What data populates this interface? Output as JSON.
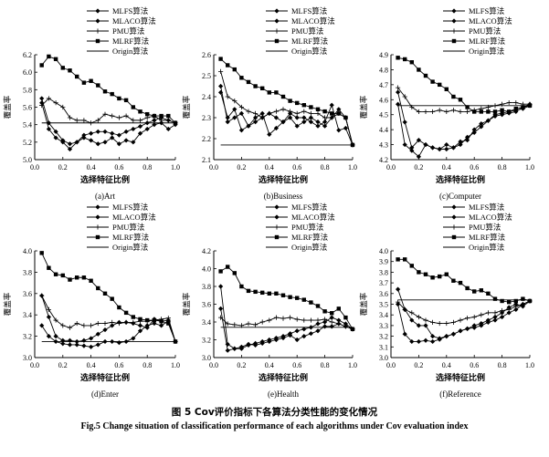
{
  "caption_cn": "图 5    Cov评价指标下各算法分类性能的变化情况",
  "caption_en": "Fig.5    Change situation of classification performance of each algorithms under Cov evaluation index",
  "legend": [
    "MLFS算法",
    "MLACO算法",
    "PMU算法",
    "MLRF算法",
    "Origin算法"
  ],
  "chart_data": [
    {
      "type": "line",
      "title": "(a)Art",
      "xlabel": "选择特征比例",
      "ylabel": "覆盖率",
      "xlim": [
        0,
        1.0
      ],
      "ylim": [
        5.0,
        6.2
      ],
      "xticks": [
        "0.0",
        "0.2",
        "0.4",
        "0.6",
        "0.8",
        "1.0"
      ],
      "yticks": [
        "5.0",
        "5.2",
        "5.4",
        "5.6",
        "5.8",
        "6.0",
        "6.2"
      ],
      "x": [
        0.05,
        0.1,
        0.15,
        0.2,
        0.25,
        0.3,
        0.35,
        0.4,
        0.45,
        0.5,
        0.55,
        0.6,
        0.65,
        0.7,
        0.75,
        0.8,
        0.85,
        0.9,
        0.95,
        1.0
      ],
      "series": [
        {
          "name": "MLFS算法",
          "marker": "diamond",
          "values": [
            5.65,
            5.35,
            5.25,
            5.2,
            5.12,
            5.2,
            5.25,
            5.22,
            5.18,
            5.2,
            5.25,
            5.18,
            5.22,
            5.2,
            5.3,
            5.35,
            5.4,
            5.42,
            5.35,
            5.4
          ]
        },
        {
          "name": "MLACO算法",
          "marker": "diamond",
          "values": [
            5.7,
            5.42,
            5.32,
            5.22,
            5.18,
            5.2,
            5.28,
            5.3,
            5.32,
            5.32,
            5.3,
            5.28,
            5.32,
            5.35,
            5.38,
            5.42,
            5.45,
            5.48,
            5.45,
            5.42
          ]
        },
        {
          "name": "PMU算法",
          "marker": "plus",
          "values": [
            5.62,
            5.7,
            5.65,
            5.6,
            5.48,
            5.45,
            5.45,
            5.42,
            5.45,
            5.52,
            5.5,
            5.48,
            5.5,
            5.45,
            5.45,
            5.48,
            5.5,
            5.45,
            5.45,
            5.42
          ]
        },
        {
          "name": "MLRF算法",
          "marker": "square",
          "values": [
            6.08,
            6.18,
            6.15,
            6.05,
            6.02,
            5.95,
            5.88,
            5.9,
            5.85,
            5.78,
            5.75,
            5.7,
            5.68,
            5.6,
            5.55,
            5.52,
            5.5,
            5.5,
            5.5,
            5.42
          ]
        },
        {
          "name": "Origin算法",
          "marker": "none",
          "values": [
            5.42,
            5.42,
            5.42,
            5.42,
            5.42,
            5.42,
            5.42,
            5.42,
            5.42,
            5.42,
            5.42,
            5.42,
            5.42,
            5.42,
            5.42,
            5.42,
            5.42,
            5.42,
            5.42,
            5.42
          ]
        }
      ]
    },
    {
      "type": "line",
      "title": "(b)Business",
      "xlabel": "选择特征比例",
      "ylabel": "覆盖率",
      "xlim": [
        0,
        1.0
      ],
      "ylim": [
        2.1,
        2.6
      ],
      "xticks": [
        "0.0",
        "0.2",
        "0.4",
        "0.6",
        "0.8",
        "1.0"
      ],
      "yticks": [
        "2.1",
        "2.2",
        "2.3",
        "2.4",
        "2.5",
        "2.6"
      ],
      "x": [
        0.05,
        0.1,
        0.15,
        0.2,
        0.25,
        0.3,
        0.35,
        0.4,
        0.45,
        0.5,
        0.55,
        0.6,
        0.65,
        0.7,
        0.75,
        0.8,
        0.85,
        0.9,
        0.95,
        1.0
      ],
      "series": [
        {
          "name": "MLFS算法",
          "marker": "diamond",
          "values": [
            2.42,
            2.3,
            2.34,
            2.24,
            2.26,
            2.3,
            2.32,
            2.22,
            2.25,
            2.28,
            2.3,
            2.26,
            2.28,
            2.3,
            2.28,
            2.26,
            2.3,
            2.34,
            2.3,
            2.17
          ]
        },
        {
          "name": "MLACO算法",
          "marker": "diamond",
          "values": [
            2.45,
            2.28,
            2.3,
            2.32,
            2.26,
            2.28,
            2.3,
            2.32,
            2.3,
            2.28,
            2.32,
            2.3,
            2.3,
            2.28,
            2.26,
            2.28,
            2.36,
            2.24,
            2.25,
            2.17
          ]
        },
        {
          "name": "PMU算法",
          "marker": "plus",
          "values": [
            2.52,
            2.4,
            2.38,
            2.35,
            2.33,
            2.32,
            2.3,
            2.32,
            2.33,
            2.34,
            2.33,
            2.32,
            2.33,
            2.32,
            2.32,
            2.3,
            2.3,
            2.32,
            2.3,
            2.17
          ]
        },
        {
          "name": "MLRF算法",
          "marker": "square",
          "values": [
            2.58,
            2.55,
            2.53,
            2.49,
            2.47,
            2.45,
            2.44,
            2.42,
            2.42,
            2.4,
            2.38,
            2.37,
            2.36,
            2.35,
            2.34,
            2.33,
            2.32,
            2.32,
            2.3,
            2.17
          ]
        },
        {
          "name": "Origin算法",
          "marker": "none",
          "values": [
            2.17,
            2.17,
            2.17,
            2.17,
            2.17,
            2.17,
            2.17,
            2.17,
            2.17,
            2.17,
            2.17,
            2.17,
            2.17,
            2.17,
            2.17,
            2.17,
            2.17,
            2.17,
            2.17,
            2.17
          ]
        }
      ]
    },
    {
      "type": "line",
      "title": "(c)Computer",
      "xlabel": "选择特征比例",
      "ylabel": "覆盖率",
      "xlim": [
        0,
        1.0
      ],
      "ylim": [
        4.2,
        4.9
      ],
      "xticks": [
        "0.0",
        "0.2",
        "0.4",
        "0.6",
        "0.8",
        "1.0"
      ],
      "yticks": [
        "4.2",
        "4.3",
        "4.4",
        "4.5",
        "4.6",
        "4.7",
        "4.8",
        "4.9"
      ],
      "x": [
        0.05,
        0.1,
        0.15,
        0.2,
        0.25,
        0.3,
        0.35,
        0.4,
        0.45,
        0.5,
        0.55,
        0.6,
        0.65,
        0.7,
        0.75,
        0.8,
        0.85,
        0.9,
        0.95,
        1.0
      ],
      "series": [
        {
          "name": "MLFS算法",
          "marker": "diamond",
          "values": [
            4.57,
            4.3,
            4.26,
            4.22,
            4.3,
            4.28,
            4.27,
            4.27,
            4.28,
            4.3,
            4.35,
            4.38,
            4.42,
            4.46,
            4.5,
            4.51,
            4.52,
            4.53,
            4.54,
            4.56
          ]
        },
        {
          "name": "MLACO算法",
          "marker": "diamond",
          "values": [
            4.65,
            4.45,
            4.28,
            4.33,
            4.3,
            4.28,
            4.27,
            4.3,
            4.28,
            4.32,
            4.33,
            4.4,
            4.44,
            4.46,
            4.49,
            4.5,
            4.51,
            4.52,
            4.55,
            4.57
          ]
        },
        {
          "name": "PMU算法",
          "marker": "plus",
          "values": [
            4.68,
            4.62,
            4.55,
            4.52,
            4.52,
            4.52,
            4.53,
            4.52,
            4.53,
            4.52,
            4.52,
            4.53,
            4.54,
            4.55,
            4.56,
            4.57,
            4.58,
            4.58,
            4.57,
            4.57
          ]
        },
        {
          "name": "MLRF算法",
          "marker": "square",
          "values": [
            4.88,
            4.87,
            4.85,
            4.8,
            4.76,
            4.72,
            4.7,
            4.67,
            4.62,
            4.6,
            4.55,
            4.52,
            4.52,
            4.52,
            4.52,
            4.53,
            4.52,
            4.54,
            4.55,
            4.56
          ]
        },
        {
          "name": "Origin算法",
          "marker": "none",
          "values": [
            4.56,
            4.56,
            4.56,
            4.56,
            4.56,
            4.56,
            4.56,
            4.56,
            4.56,
            4.56,
            4.56,
            4.56,
            4.56,
            4.56,
            4.56,
            4.56,
            4.56,
            4.56,
            4.56,
            4.56
          ]
        }
      ]
    },
    {
      "type": "line",
      "title": "(d)Enter",
      "xlabel": "选择特征比例",
      "ylabel": "覆盖率",
      "xlim": [
        0,
        1.0
      ],
      "ylim": [
        3.0,
        4.0
      ],
      "xticks": [
        "0.0",
        "0.2",
        "0.4",
        "0.6",
        "0.8",
        "1.0"
      ],
      "yticks": [
        "3.0",
        "3.2",
        "3.4",
        "3.6",
        "3.8",
        "4.0"
      ],
      "x": [
        0.05,
        0.1,
        0.15,
        0.2,
        0.25,
        0.3,
        0.35,
        0.4,
        0.45,
        0.5,
        0.55,
        0.6,
        0.65,
        0.7,
        0.75,
        0.8,
        0.85,
        0.9,
        0.95,
        1.0
      ],
      "series": [
        {
          "name": "MLFS算法",
          "marker": "diamond",
          "values": [
            3.3,
            3.2,
            3.15,
            3.13,
            3.12,
            3.12,
            3.11,
            3.1,
            3.12,
            3.15,
            3.15,
            3.14,
            3.15,
            3.18,
            3.25,
            3.3,
            3.32,
            3.3,
            3.34,
            3.15
          ]
        },
        {
          "name": "MLACO算法",
          "marker": "diamond",
          "values": [
            3.58,
            3.38,
            3.2,
            3.16,
            3.16,
            3.15,
            3.16,
            3.18,
            3.22,
            3.26,
            3.3,
            3.33,
            3.33,
            3.32,
            3.3,
            3.28,
            3.36,
            3.34,
            3.35,
            3.15
          ]
        },
        {
          "name": "PMU算法",
          "marker": "plus",
          "values": [
            3.58,
            3.45,
            3.35,
            3.3,
            3.28,
            3.32,
            3.3,
            3.3,
            3.32,
            3.32,
            3.33,
            3.32,
            3.33,
            3.33,
            3.34,
            3.34,
            3.35,
            3.36,
            3.37,
            3.15
          ]
        },
        {
          "name": "MLRF算法",
          "marker": "square",
          "values": [
            3.98,
            3.84,
            3.78,
            3.77,
            3.73,
            3.75,
            3.75,
            3.72,
            3.65,
            3.6,
            3.55,
            3.47,
            3.42,
            3.38,
            3.36,
            3.35,
            3.35,
            3.34,
            3.32,
            3.15
          ]
        },
        {
          "name": "Origin算法",
          "marker": "none",
          "values": [
            3.15,
            3.15,
            3.15,
            3.15,
            3.15,
            3.15,
            3.15,
            3.15,
            3.15,
            3.15,
            3.15,
            3.15,
            3.15,
            3.15,
            3.15,
            3.15,
            3.15,
            3.15,
            3.15,
            3.15
          ]
        }
      ]
    },
    {
      "type": "line",
      "title": "(e)Health",
      "xlabel": "选择特征比例",
      "ylabel": "覆盖率",
      "xlim": [
        0,
        1.0
      ],
      "ylim": [
        3.0,
        4.2
      ],
      "xticks": [
        "0.0",
        "0.2",
        "0.4",
        "0.6",
        "0.8",
        "1.0"
      ],
      "yticks": [
        "3.0",
        "3.2",
        "3.4",
        "3.6",
        "3.8",
        "4.0",
        "4.2"
      ],
      "x": [
        0.05,
        0.1,
        0.15,
        0.2,
        0.25,
        0.3,
        0.35,
        0.4,
        0.45,
        0.5,
        0.55,
        0.6,
        0.65,
        0.7,
        0.75,
        0.8,
        0.85,
        0.9,
        0.95,
        1.0
      ],
      "series": [
        {
          "name": "MLFS算法",
          "marker": "diamond",
          "values": [
            3.55,
            3.08,
            3.1,
            3.12,
            3.15,
            3.14,
            3.16,
            3.18,
            3.2,
            3.22,
            3.25,
            3.2,
            3.24,
            3.27,
            3.3,
            3.35,
            3.35,
            3.38,
            3.35,
            3.32
          ]
        },
        {
          "name": "MLACO算法",
          "marker": "diamond",
          "values": [
            3.8,
            3.15,
            3.1,
            3.1,
            3.14,
            3.16,
            3.18,
            3.2,
            3.22,
            3.24,
            3.27,
            3.3,
            3.32,
            3.34,
            3.38,
            3.4,
            3.45,
            3.42,
            3.38,
            3.32
          ]
        },
        {
          "name": "PMU算法",
          "marker": "plus",
          "values": [
            3.45,
            3.38,
            3.37,
            3.36,
            3.38,
            3.37,
            3.4,
            3.42,
            3.45,
            3.44,
            3.45,
            3.43,
            3.42,
            3.42,
            3.42,
            3.43,
            3.4,
            3.38,
            3.35,
            3.32
          ]
        },
        {
          "name": "MLRF算法",
          "marker": "square",
          "values": [
            3.97,
            4.02,
            3.95,
            3.8,
            3.75,
            3.74,
            3.73,
            3.72,
            3.72,
            3.7,
            3.68,
            3.67,
            3.65,
            3.62,
            3.58,
            3.52,
            3.5,
            3.55,
            3.45,
            3.32
          ]
        },
        {
          "name": "Origin算法",
          "marker": "none",
          "values": [
            3.34,
            3.34,
            3.34,
            3.34,
            3.34,
            3.34,
            3.34,
            3.34,
            3.34,
            3.34,
            3.34,
            3.34,
            3.34,
            3.34,
            3.34,
            3.34,
            3.34,
            3.34,
            3.34,
            3.34
          ]
        }
      ]
    },
    {
      "type": "line",
      "title": "(f)Reference",
      "xlabel": "选择特征比例",
      "ylabel": "覆盖率",
      "xlim": [
        0,
        1.0
      ],
      "ylim": [
        3.0,
        4.0
      ],
      "xticks": [
        "0.0",
        "0.2",
        "0.4",
        "0.6",
        "0.8",
        "1.0"
      ],
      "yticks": [
        "3.0",
        "3.1",
        "3.2",
        "3.3",
        "3.4",
        "3.5",
        "3.6",
        "3.7",
        "3.8",
        "3.9",
        "4.0"
      ],
      "x": [
        0.05,
        0.1,
        0.15,
        0.2,
        0.25,
        0.3,
        0.35,
        0.4,
        0.45,
        0.5,
        0.55,
        0.6,
        0.65,
        0.7,
        0.75,
        0.8,
        0.85,
        0.9,
        0.95,
        1.0
      ],
      "series": [
        {
          "name": "MLFS算法",
          "marker": "diamond",
          "values": [
            3.5,
            3.22,
            3.15,
            3.15,
            3.16,
            3.15,
            3.17,
            3.2,
            3.22,
            3.25,
            3.27,
            3.28,
            3.3,
            3.33,
            3.35,
            3.38,
            3.42,
            3.45,
            3.5,
            3.53
          ]
        },
        {
          "name": "MLACO算法",
          "marker": "diamond",
          "values": [
            3.64,
            3.45,
            3.35,
            3.3,
            3.3,
            3.2,
            3.18,
            3.2,
            3.22,
            3.25,
            3.27,
            3.3,
            3.32,
            3.35,
            3.38,
            3.42,
            3.47,
            3.5,
            3.48,
            3.53
          ]
        },
        {
          "name": "PMU算法",
          "marker": "plus",
          "values": [
            3.52,
            3.45,
            3.42,
            3.38,
            3.35,
            3.33,
            3.32,
            3.32,
            3.33,
            3.35,
            3.37,
            3.38,
            3.4,
            3.42,
            3.42,
            3.44,
            3.45,
            3.48,
            3.5,
            3.53
          ]
        },
        {
          "name": "MLRF算法",
          "marker": "square",
          "values": [
            3.92,
            3.92,
            3.86,
            3.8,
            3.78,
            3.75,
            3.76,
            3.78,
            3.72,
            3.7,
            3.65,
            3.62,
            3.63,
            3.6,
            3.55,
            3.53,
            3.52,
            3.53,
            3.55,
            3.53
          ]
        },
        {
          "name": "Origin算法",
          "marker": "none",
          "values": [
            3.54,
            3.54,
            3.54,
            3.54,
            3.54,
            3.54,
            3.54,
            3.54,
            3.54,
            3.54,
            3.54,
            3.54,
            3.54,
            3.54,
            3.54,
            3.54,
            3.54,
            3.54,
            3.54,
            3.54
          ]
        }
      ]
    }
  ]
}
